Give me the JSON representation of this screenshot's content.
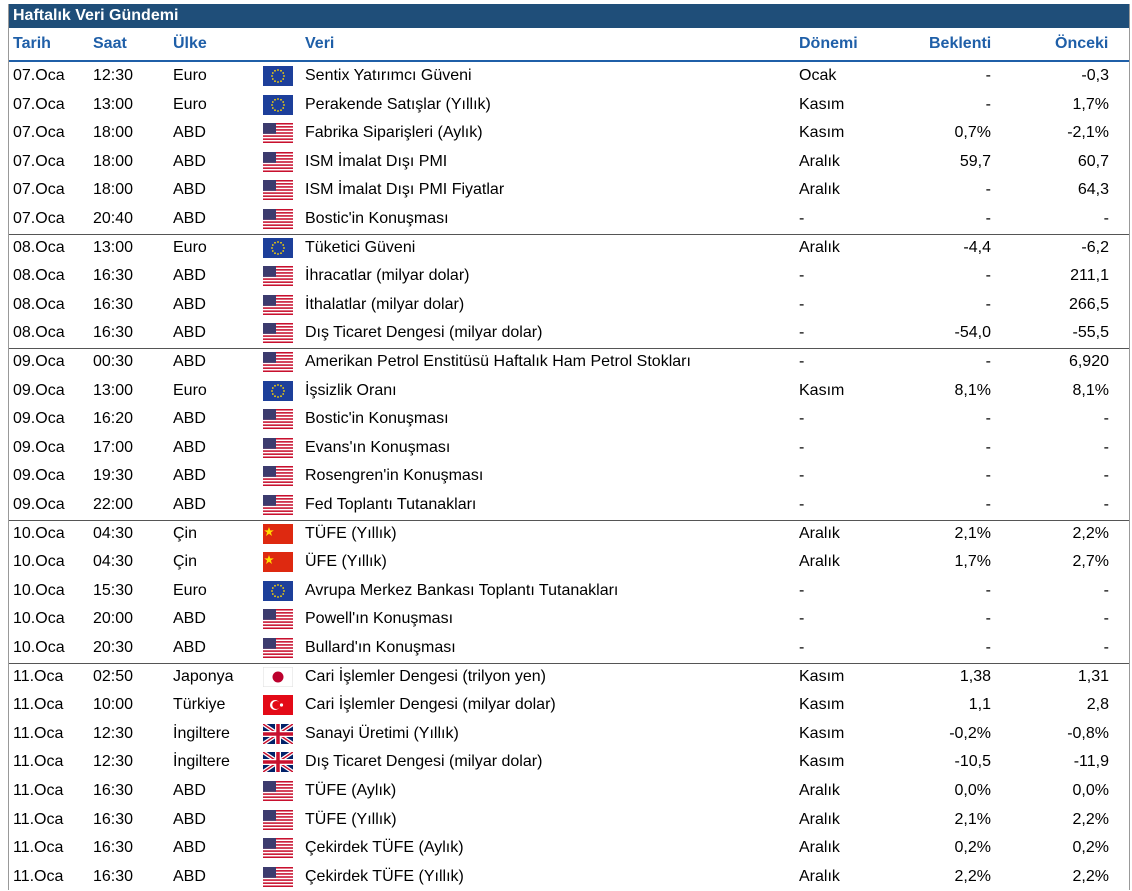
{
  "title": "Haftalık Veri Gündemi",
  "headers": [
    "Tarih",
    "Saat",
    "Ülke",
    "Veri",
    "Dönemi",
    "Beklenti",
    "Önceki"
  ],
  "rows": [
    [
      "07.Oca",
      "12:30",
      "Euro",
      "Sentix Yatırımcı Güveni",
      "Ocak",
      "-",
      "-0,3"
    ],
    [
      "07.Oca",
      "13:00",
      "Euro",
      "Perakende Satışlar (Yıllık)",
      "Kasım",
      "-",
      "1,7%"
    ],
    [
      "07.Oca",
      "18:00",
      "ABD",
      "Fabrika Siparişleri (Aylık)",
      "Kasım",
      "0,7%",
      "-2,1%"
    ],
    [
      "07.Oca",
      "18:00",
      "ABD",
      "ISM İmalat Dışı PMI",
      "Aralık",
      "59,7",
      "60,7"
    ],
    [
      "07.Oca",
      "18:00",
      "ABD",
      "ISM İmalat Dışı PMI Fiyatlar",
      "Aralık",
      "-",
      "64,3"
    ],
    [
      "07.Oca",
      "20:40",
      "ABD",
      "Bostic'in Konuşması",
      "-",
      "-",
      "-"
    ],
    [
      "08.Oca",
      "13:00",
      "Euro",
      "Tüketici Güveni",
      "Aralık",
      "-4,4",
      "-6,2"
    ],
    [
      "08.Oca",
      "16:30",
      "ABD",
      "İhracatlar (milyar dolar)",
      "-",
      "-",
      "211,1"
    ],
    [
      "08.Oca",
      "16:30",
      "ABD",
      "İthalatlar (milyar dolar)",
      "-",
      "-",
      "266,5"
    ],
    [
      "08.Oca",
      "16:30",
      "ABD",
      "Dış Ticaret Dengesi (milyar dolar)",
      "-",
      "-54,0",
      "-55,5"
    ],
    [
      "09.Oca",
      "00:30",
      "ABD",
      "Amerikan Petrol Enstitüsü Haftalık Ham Petrol Stokları",
      "-",
      "-",
      "6,920"
    ],
    [
      "09.Oca",
      "13:00",
      "Euro",
      "İşsizlik Oranı",
      "Kasım",
      "8,1%",
      "8,1%"
    ],
    [
      "09.Oca",
      "16:20",
      "ABD",
      "Bostic'in Konuşması",
      "-",
      "-",
      "-"
    ],
    [
      "09.Oca",
      "17:00",
      "ABD",
      "Evans'ın Konuşması",
      "-",
      "-",
      "-"
    ],
    [
      "09.Oca",
      "19:30",
      "ABD",
      "Rosengren'in Konuşması",
      "-",
      "-",
      "-"
    ],
    [
      "09.Oca",
      "22:00",
      "ABD",
      "Fed Toplantı Tutanakları",
      "-",
      "-",
      "-"
    ],
    [
      "10.Oca",
      "04:30",
      "Çin",
      "TÜFE (Yıllık)",
      "Aralık",
      "2,1%",
      "2,2%"
    ],
    [
      "10.Oca",
      "04:30",
      "Çin",
      "ÜFE (Yıllık)",
      "Aralık",
      "1,7%",
      "2,7%"
    ],
    [
      "10.Oca",
      "15:30",
      "Euro",
      "Avrupa Merkez Bankası Toplantı Tutanakları",
      "-",
      "-",
      "-"
    ],
    [
      "10.Oca",
      "20:00",
      "ABD",
      "Powell'ın Konuşması",
      "-",
      "-",
      "-"
    ],
    [
      "10.Oca",
      "20:30",
      "ABD",
      "Bullard'ın Konuşması",
      "-",
      "-",
      "-"
    ],
    [
      "11.Oca",
      "02:50",
      "Japonya",
      "Cari İşlemler Dengesi (trilyon yen)",
      "Kasım",
      "1,38",
      "1,31"
    ],
    [
      "11.Oca",
      "10:00",
      "Türkiye",
      "Cari İşlemler Dengesi (milyar dolar)",
      "Kasım",
      "1,1",
      "2,8"
    ],
    [
      "11.Oca",
      "12:30",
      "İngiltere",
      "Sanayi Üretimi (Yıllık)",
      "Kasım",
      "-0,2%",
      "-0,8%"
    ],
    [
      "11.Oca",
      "12:30",
      "İngiltere",
      "Dış Ticaret Dengesi (milyar dolar)",
      "Kasım",
      "-10,5",
      "-11,9"
    ],
    [
      "11.Oca",
      "16:30",
      "ABD",
      "TÜFE (Aylık)",
      "Aralık",
      "0,0%",
      "0,0%"
    ],
    [
      "11.Oca",
      "16:30",
      "ABD",
      "TÜFE (Yıllık)",
      "Aralık",
      "2,1%",
      "2,2%"
    ],
    [
      "11.Oca",
      "16:30",
      "ABD",
      "Çekirdek TÜFE (Aylık)",
      "Aralık",
      "0,2%",
      "0,2%"
    ],
    [
      "11.Oca",
      "16:30",
      "ABD",
      "Çekirdek TÜFE (Yıllık)",
      "Aralık",
      "2,2%",
      "2,2%"
    ]
  ]
}
